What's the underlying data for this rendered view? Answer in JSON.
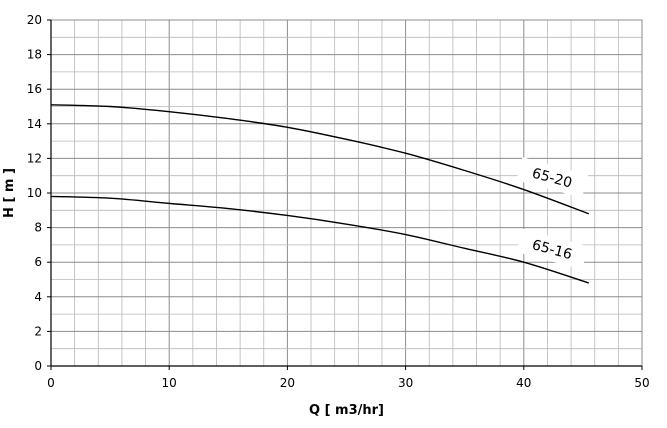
{
  "chart_data": {
    "type": "line",
    "title": "",
    "xlabel": "Q [ m3/hr]",
    "ylabel": "H [ m ]",
    "xlim": [
      0,
      50
    ],
    "ylim": [
      0,
      20
    ],
    "x_ticks": [
      0,
      10,
      20,
      30,
      40,
      50
    ],
    "y_ticks": [
      0,
      2,
      4,
      6,
      8,
      10,
      12,
      14,
      16,
      18,
      20
    ],
    "grid": true,
    "minor_grid_x_step": 2,
    "minor_grid_y_step": 1,
    "line_color": "#000000",
    "series": [
      {
        "name": "65-20",
        "x": [
          0,
          5,
          10,
          15,
          20,
          25,
          30,
          35,
          40,
          45.5
        ],
        "y": [
          15.1,
          15.0,
          14.7,
          14.3,
          13.8,
          13.1,
          12.3,
          11.3,
          10.2,
          8.8
        ]
      },
      {
        "name": "65-16",
        "x": [
          0,
          5,
          10,
          15,
          20,
          25,
          30,
          35,
          40,
          45.5
        ],
        "y": [
          9.8,
          9.7,
          9.4,
          9.1,
          8.7,
          8.2,
          7.6,
          6.8,
          6.0,
          4.8
        ]
      }
    ]
  }
}
